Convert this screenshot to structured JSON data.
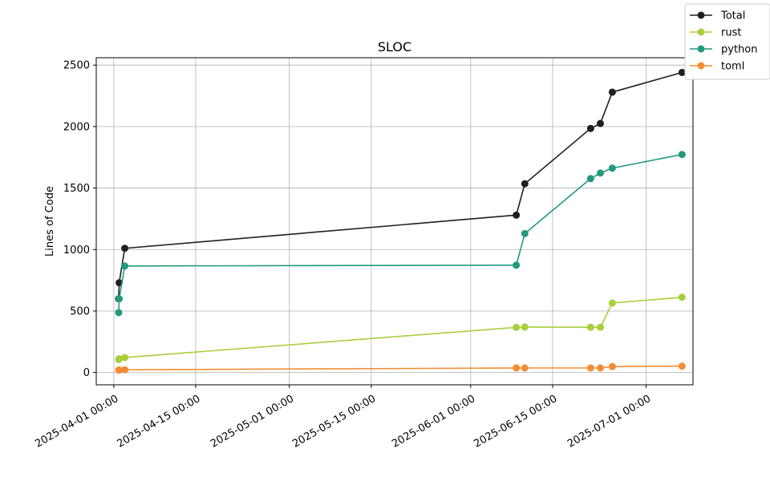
{
  "chart_data": {
    "type": "line",
    "title": "SLOC",
    "xlabel": "",
    "ylabel": "Lines of Code",
    "x_axis_type": "date",
    "xlim": [
      "2025-03-29",
      "2025-07-09"
    ],
    "ylim": [
      -100,
      2560
    ],
    "grid": true,
    "legend_position": "top-right",
    "x_ticks": [
      {
        "value": "2025-04-01",
        "label": "2025-04-01 00:00"
      },
      {
        "value": "2025-04-15",
        "label": "2025-04-15 00:00"
      },
      {
        "value": "2025-05-01",
        "label": "2025-05-01 00:00"
      },
      {
        "value": "2025-05-15",
        "label": "2025-05-15 00:00"
      },
      {
        "value": "2025-06-01",
        "label": "2025-06-01 00:00"
      },
      {
        "value": "2025-06-15",
        "label": "2025-06-15 00:00"
      },
      {
        "value": "2025-07-01",
        "label": "2025-07-01 00:00"
      }
    ],
    "y_ticks": [
      0,
      500,
      1000,
      1500,
      2000,
      2500
    ],
    "series": [
      {
        "name": "Total",
        "color": "#1f1f1f",
        "points": [
          [
            "2025-04-01 20:00",
            600
          ],
          [
            "2025-04-01 22:00",
            730
          ],
          [
            "2025-04-02 21:00",
            1010
          ],
          [
            "2025-06-08 19:00",
            1280
          ],
          [
            "2025-06-10 06:00",
            1535
          ],
          [
            "2025-06-21 12:00",
            1985
          ],
          [
            "2025-06-23 04:00",
            2025
          ],
          [
            "2025-06-25 05:00",
            2280
          ],
          [
            "2025-07-07 03:00",
            2440
          ]
        ]
      },
      {
        "name": "rust",
        "color": "#a8cf3c",
        "points": [
          [
            "2025-04-01 20:00",
            105
          ],
          [
            "2025-04-01 22:00",
            112
          ],
          [
            "2025-04-02 21:00",
            122
          ],
          [
            "2025-06-08 19:00",
            367
          ],
          [
            "2025-06-10 06:00",
            370
          ],
          [
            "2025-06-21 12:00",
            368
          ],
          [
            "2025-06-23 04:00",
            368
          ],
          [
            "2025-06-25 05:00",
            565
          ],
          [
            "2025-07-07 03:00",
            612
          ]
        ]
      },
      {
        "name": "python",
        "color": "#23997f",
        "points": [
          [
            "2025-04-01 20:00",
            487
          ],
          [
            "2025-04-01 22:00",
            600
          ],
          [
            "2025-04-02 21:00",
            866
          ],
          [
            "2025-06-08 19:00",
            873
          ],
          [
            "2025-06-10 06:00",
            1130
          ],
          [
            "2025-06-21 12:00",
            1577
          ],
          [
            "2025-06-23 04:00",
            1622
          ],
          [
            "2025-06-25 05:00",
            1662
          ],
          [
            "2025-07-07 03:00",
            1773
          ]
        ]
      },
      {
        "name": "toml",
        "color": "#f28d35",
        "points": [
          [
            "2025-04-01 20:00",
            20
          ],
          [
            "2025-04-01 22:00",
            20
          ],
          [
            "2025-04-02 21:00",
            22
          ],
          [
            "2025-06-08 19:00",
            37
          ],
          [
            "2025-06-10 06:00",
            37
          ],
          [
            "2025-06-21 12:00",
            37
          ],
          [
            "2025-06-23 04:00",
            37
          ],
          [
            "2025-06-25 05:00",
            48
          ],
          [
            "2025-07-07 03:00",
            52
          ]
        ]
      }
    ]
  }
}
